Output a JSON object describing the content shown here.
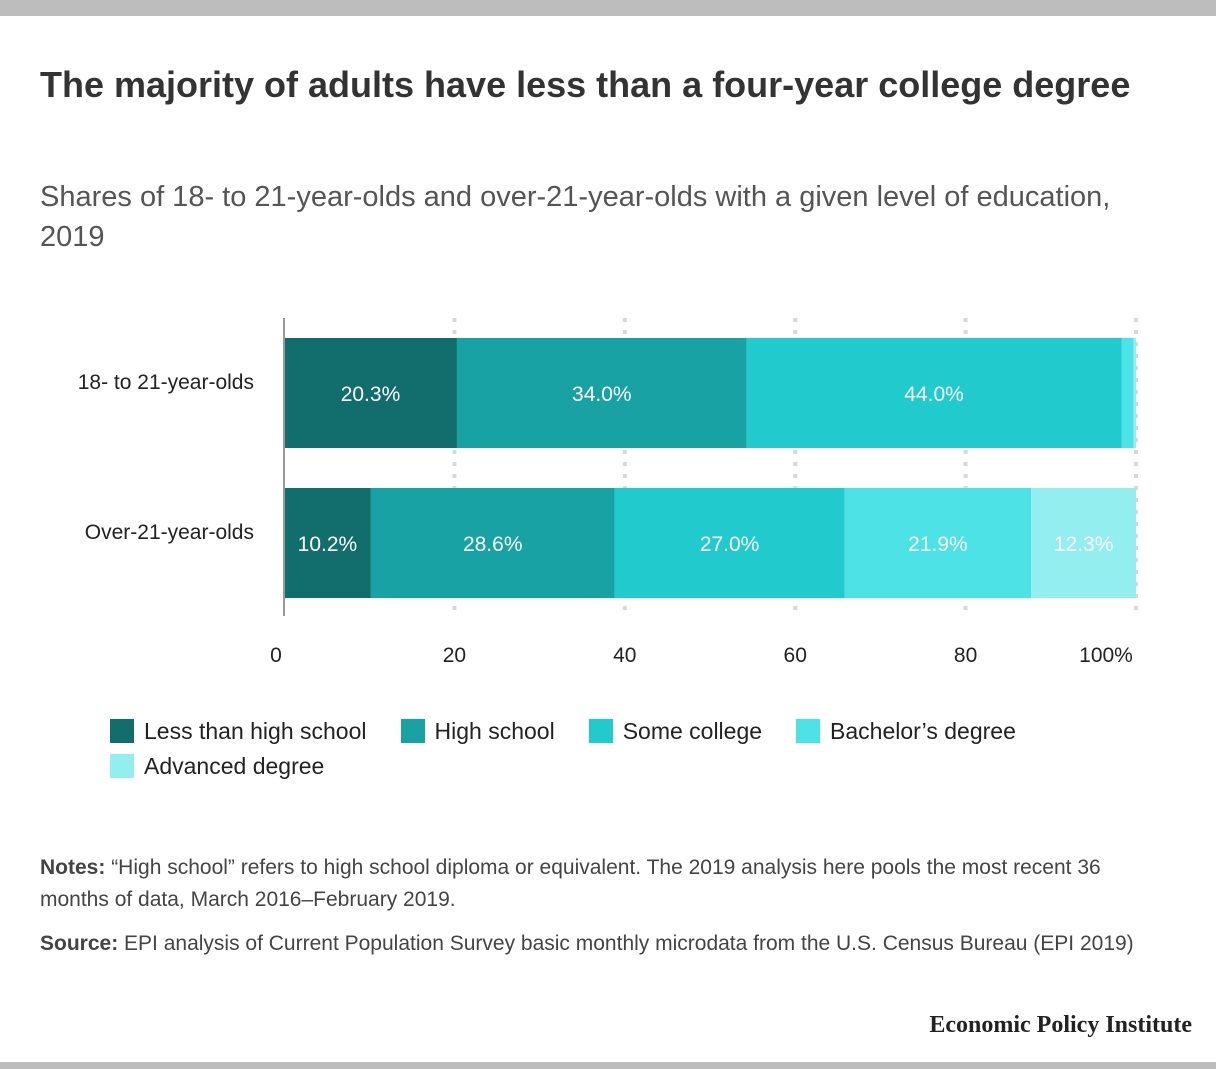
{
  "title": "The majority of adults have less than a four-year college degree",
  "subtitle": "Shares of 18- to 21-year-olds and over-21-year-olds with a given level of education, 2019",
  "notes": {
    "lead": "Notes:",
    "text": "“High school” refers to high school diploma or equivalent. The 2019 analysis here pools the most recent 36 months of data, March 2016–February 2019."
  },
  "source": {
    "lead": "Source:",
    "text": "EPI analysis of Current Population Survey basic monthly microdata from the U.S. Census Bureau (EPI 2019)"
  },
  "brand": "Economic Policy Institute",
  "colors": {
    "less_than_hs": "#126e6c",
    "high_school": "#19a2a3",
    "some_college": "#21cacc",
    "bachelors": "#4de3e6",
    "advanced": "#92eeef",
    "grid": "#d8d8d8",
    "axis": "#999999"
  },
  "chart_data": {
    "type": "bar",
    "orientation": "horizontal",
    "stacked": true,
    "categories": [
      "18- to 21-year-olds",
      "Over-21-year-olds"
    ],
    "series": [
      {
        "name": "Less than high school",
        "color": "#126e6c",
        "values": [
          20.3,
          10.2
        ],
        "labels": [
          "20.3%",
          "10.2%"
        ]
      },
      {
        "name": "High school",
        "color": "#19a2a3",
        "values": [
          34.0,
          28.6
        ],
        "labels": [
          "34.0%",
          "28.6%"
        ]
      },
      {
        "name": "Some college",
        "color": "#21cacc",
        "values": [
          44.0,
          27.0
        ],
        "labels": [
          "44.0%",
          "27.0%"
        ]
      },
      {
        "name": "Bachelor’s degree",
        "color": "#4de3e6",
        "values": [
          1.4,
          21.9
        ],
        "labels": [
          "",
          "21.9%"
        ]
      },
      {
        "name": "Advanced degree",
        "color": "#92eeef",
        "values": [
          0.3,
          12.3
        ],
        "labels": [
          "",
          "12.3%"
        ]
      }
    ],
    "xlim": [
      0,
      100
    ],
    "xticks": [
      0,
      20,
      40,
      60,
      80,
      100
    ],
    "xtick_labels": [
      "0",
      "20",
      "40",
      "60",
      "80",
      "100%"
    ],
    "grid": true,
    "legend_position": "bottom"
  }
}
